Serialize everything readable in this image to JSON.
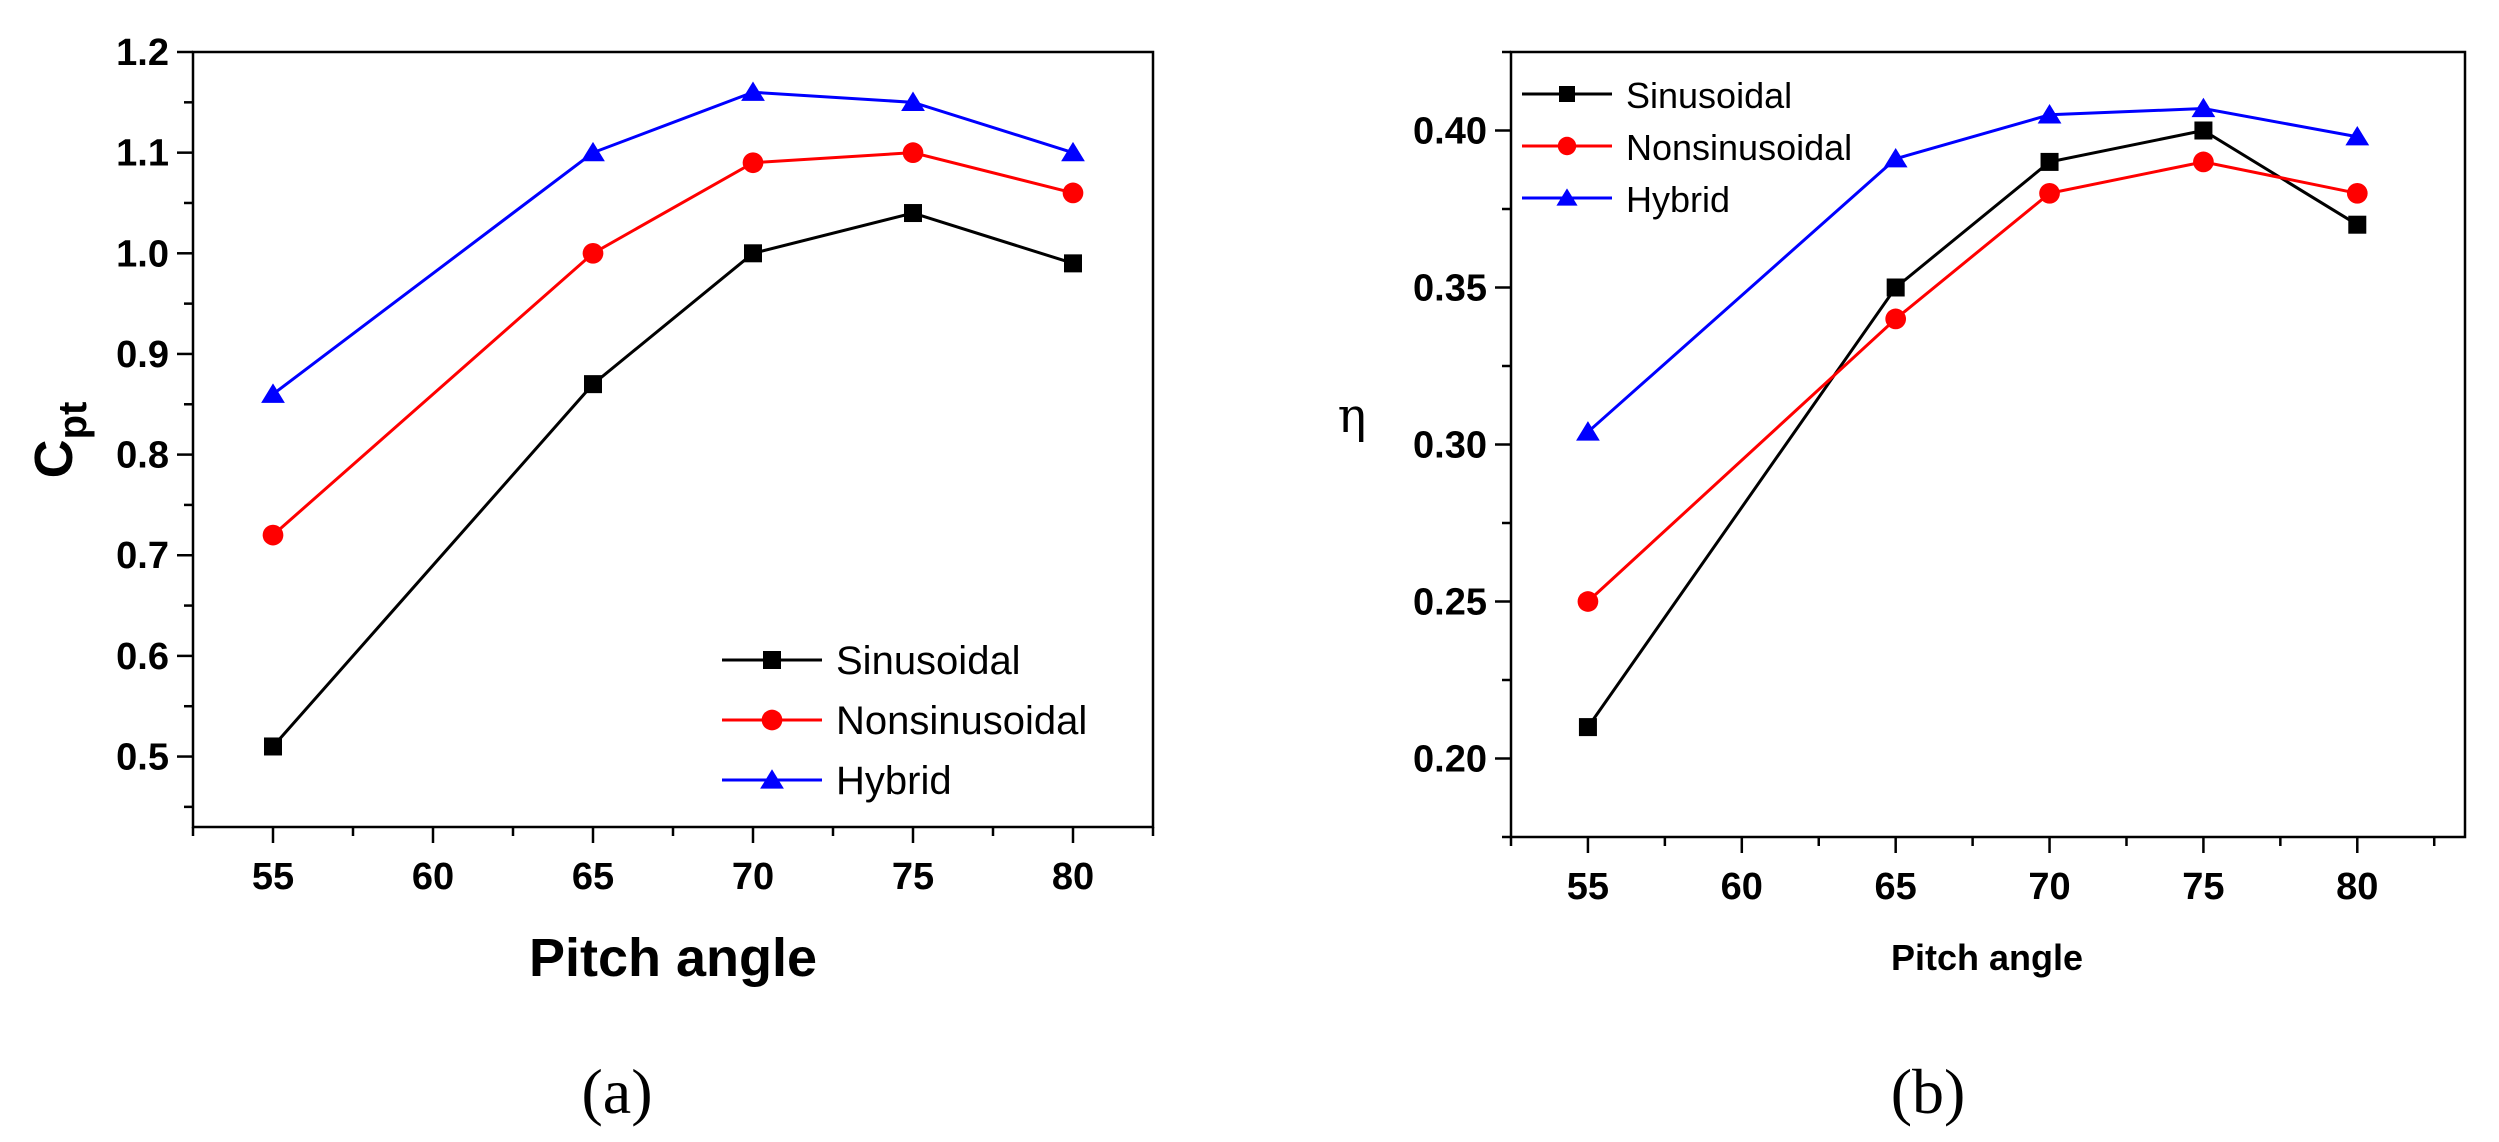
{
  "colors": {
    "Sinusoidal": "#000000",
    "Nonsinusoidal": "#ff0000",
    "Hybrid": "#0000ff"
  },
  "chart_data": [
    {
      "type": "line",
      "caption": "(a)",
      "xlabel": "Pitch angle",
      "ylabel_main": "C",
      "ylabel_sub": "pt",
      "xlim": [
        52.5,
        82.5
      ],
      "ylim": [
        0.43,
        1.2
      ],
      "xticks": [
        "55",
        "60",
        "65",
        "70",
        "75",
        "80"
      ],
      "yticks": [
        "0.5",
        "0.6",
        "0.7",
        "0.8",
        "0.9",
        "1.0",
        "1.1",
        "1.2"
      ],
      "legend_position": "bottom-right",
      "series": [
        {
          "name": "Sinusoidal",
          "marker": "square",
          "x": [
            55,
            65,
            70,
            75,
            80
          ],
          "values": [
            0.51,
            0.87,
            1.0,
            1.04,
            0.99
          ]
        },
        {
          "name": "Nonsinusoidal",
          "marker": "circle",
          "x": [
            55,
            65,
            70,
            75,
            80
          ],
          "values": [
            0.72,
            1.0,
            1.09,
            1.1,
            1.06
          ]
        },
        {
          "name": "Hybrid",
          "marker": "triangle",
          "x": [
            55,
            65,
            70,
            75,
            80
          ],
          "values": [
            0.86,
            1.1,
            1.16,
            1.15,
            1.1
          ]
        }
      ]
    },
    {
      "type": "line",
      "caption": "(b)",
      "xlabel": "Pitch angle",
      "ylabel": "η",
      "xlim": [
        52.5,
        83.5
      ],
      "ylim": [
        0.175,
        0.425
      ],
      "xticks": [
        "55",
        "60",
        "65",
        "70",
        "75",
        "80"
      ],
      "yticks": [
        "0.20",
        "0.25",
        "0.30",
        "0.35",
        "0.40"
      ],
      "legend_position": "top-left",
      "series": [
        {
          "name": "Sinusoidal",
          "marker": "square",
          "x": [
            55,
            65,
            70,
            75,
            80
          ],
          "values": [
            0.21,
            0.35,
            0.39,
            0.4,
            0.37
          ]
        },
        {
          "name": "Nonsinusoidal",
          "marker": "circle",
          "x": [
            55,
            65,
            70,
            75,
            80
          ],
          "values": [
            0.25,
            0.34,
            0.38,
            0.39,
            0.38
          ]
        },
        {
          "name": "Hybrid",
          "marker": "triangle",
          "x": [
            55,
            65,
            70,
            75,
            80
          ],
          "values": [
            0.304,
            0.391,
            0.405,
            0.407,
            0.398
          ]
        }
      ]
    }
  ]
}
